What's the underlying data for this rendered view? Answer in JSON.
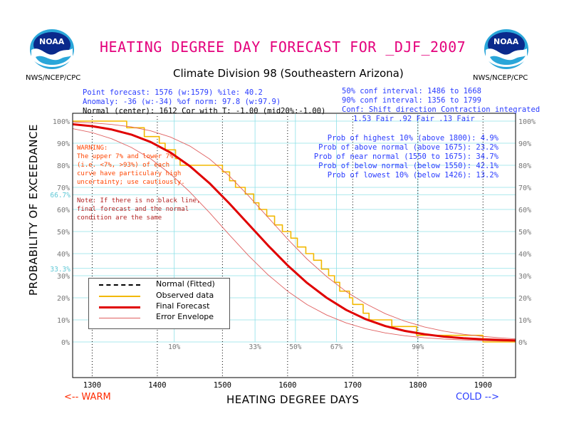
{
  "header": {
    "title": "HEATING DEGREE DAY FORECAST FOR _DJF_2007",
    "subtitle": "Climate Division 98 (Southeastern Arizona)",
    "agency_left": "NWS/NCEP/CPC",
    "agency_right": "NWS/NCEP/CPC",
    "logo_text": "NOAA"
  },
  "stats_left": {
    "line1": "Point forecast: 1576 (w:1579)      %ile: 40.2",
    "line2": "Anomaly: -36 (w:-34)     %of norm: 97.8 (w:97.9)",
    "line3": "Normal (center): 1612 Cor with T: -1.00 (mid20%:-1.00)"
  },
  "stats_right": {
    "line1": "50% conf interval: 1486 to 1668",
    "line2": "90% conf interval: 1356 to 1799",
    "line3": "Conf: Shift direction  Contraction  integrated",
    "line4": "1.53 Fair        .92 Fair  .13 Fair"
  },
  "probabilities": [
    "Prob of highest 10% (above 1800): 4.9%",
    "Prob of above normal (above 1675): 23.2%",
    "Prob of near normal (1550 to 1675): 34.7%",
    "Prob of below normal (below 1550): 42.1%",
    "Prob of lowest 10% (below 1426): 13.2%"
  ],
  "warning": [
    "WARNING:",
    "The upper 7% and lower 7%",
    "(i.e. <7%, >93%) of each",
    "curve have particulary high",
    "uncertainty; use cautiously."
  ],
  "note": [
    "Note: If there is no black line,",
    "final forecast and  the normal",
    "condition are the same"
  ],
  "legend": [
    {
      "label": "Normal (Fitted)",
      "color": "#000000",
      "style": "dashed"
    },
    {
      "label": "Observed data",
      "color": "#f2b800",
      "style": "solid"
    },
    {
      "label": "Final Forecast",
      "color": "#e00000",
      "style": "thick"
    },
    {
      "label": "Error Envelope",
      "color": "#e06060",
      "style": "thin"
    }
  ],
  "axes": {
    "ylabel": "PROBABILITY OF EXCEEDANCE",
    "xlabel": "HEATING DEGREE DAYS",
    "warm_label": "<-- WARM",
    "cold_label": "COLD -->"
  },
  "colors": {
    "title": "#e4007c",
    "stats": "#2a3cff",
    "warning": "#ff4400",
    "note": "#b22222",
    "cyan": "#8fe0e8",
    "forecast": "#e00000",
    "envelope": "#e06060",
    "observed": "#f2b800"
  },
  "chart_data": {
    "type": "line",
    "xlim": [
      1270,
      1950
    ],
    "ylim": [
      -15,
      105
    ],
    "x_ticks": [
      1300,
      1400,
      1500,
      1600,
      1700,
      1800,
      1900
    ],
    "y_ticks": [
      0,
      10,
      20,
      30,
      40,
      50,
      60,
      70,
      80,
      90,
      100
    ],
    "y_tick_labels": [
      "0%",
      "10%",
      "20%",
      "30%",
      "40%",
      "50%",
      "60%",
      "70%",
      "80%",
      "90%",
      "100%"
    ],
    "percentile_lines": [
      {
        "label": "10%",
        "x": 1426
      },
      {
        "label": "33%",
        "x": 1550
      },
      {
        "label": "50%",
        "x": 1612
      },
      {
        "label": "67%",
        "x": 1675
      },
      {
        "label": "90%",
        "x": 1800
      }
    ],
    "prob_lines": [
      {
        "label": "66.7%",
        "y": 66.7
      },
      {
        "label": "33.3%",
        "y": 33.3
      }
    ],
    "series": [
      {
        "name": "Final Forecast",
        "x": [
          1270,
          1300,
          1330,
          1360,
          1390,
          1420,
          1450,
          1480,
          1510,
          1540,
          1570,
          1600,
          1630,
          1660,
          1690,
          1720,
          1750,
          1780,
          1810,
          1840,
          1870,
          1900,
          1930,
          1950
        ],
        "y": [
          98.6,
          97.7,
          96.2,
          93.9,
          90.5,
          85.8,
          79.6,
          71.9,
          62.9,
          53.3,
          43.7,
          34.7,
          26.7,
          20.0,
          14.5,
          10.3,
          7.2,
          5.0,
          3.5,
          2.4,
          1.7,
          1.2,
          0.9,
          0.7
        ]
      },
      {
        "name": "Error Envelope (upper)",
        "x": [
          1270,
          1300,
          1330,
          1360,
          1390,
          1420,
          1450,
          1480,
          1510,
          1540,
          1570,
          1600,
          1630,
          1660,
          1690,
          1720,
          1750,
          1780,
          1810,
          1840,
          1870,
          1900,
          1930,
          1950
        ],
        "y": [
          99.6,
          99.2,
          98.5,
          97.4,
          95.6,
          92.8,
          88.7,
          82.9,
          75.3,
          66.2,
          56.4,
          46.6,
          37.5,
          29.6,
          22.8,
          17.3,
          12.8,
          9.4,
          6.8,
          4.9,
          3.5,
          2.5,
          1.8,
          1.4
        ]
      },
      {
        "name": "Error Envelope (lower)",
        "x": [
          1270,
          1300,
          1330,
          1360,
          1390,
          1420,
          1450,
          1480,
          1510,
          1540,
          1570,
          1600,
          1630,
          1660,
          1690,
          1720,
          1750,
          1780,
          1810,
          1840,
          1870,
          1900,
          1930,
          1950
        ],
        "y": [
          96.6,
          94.8,
          92.0,
          88.1,
          82.9,
          76.1,
          67.9,
          58.6,
          48.7,
          39.1,
          30.4,
          23.0,
          16.9,
          12.2,
          8.6,
          6.0,
          4.1,
          2.8,
          1.9,
          1.3,
          0.9,
          0.6,
          0.4,
          0.3
        ]
      },
      {
        "name": "Observed data",
        "step": true,
        "x": [
          1270,
          1343,
          1353,
          1380,
          1403,
          1412,
          1428,
          1435,
          1448,
          1465,
          1482,
          1500,
          1511,
          1520,
          1535,
          1548,
          1556,
          1568,
          1580,
          1592,
          1605,
          1615,
          1628,
          1640,
          1652,
          1663,
          1672,
          1680,
          1695,
          1700,
          1716,
          1725,
          1748,
          1760,
          1782,
          1798,
          1810,
          1832,
          1850,
          1858,
          1900,
          1912,
          1915,
          1950
        ],
        "y": [
          100,
          100,
          97,
          93,
          90,
          87,
          83,
          80,
          80,
          80,
          80,
          77,
          73,
          70,
          67,
          63,
          60,
          57,
          53,
          50,
          47,
          43,
          40,
          37,
          33,
          30,
          27,
          23,
          20,
          17,
          13,
          10,
          10,
          7,
          7,
          3,
          3,
          3,
          3,
          3,
          0,
          0,
          0,
          0
        ]
      }
    ]
  }
}
